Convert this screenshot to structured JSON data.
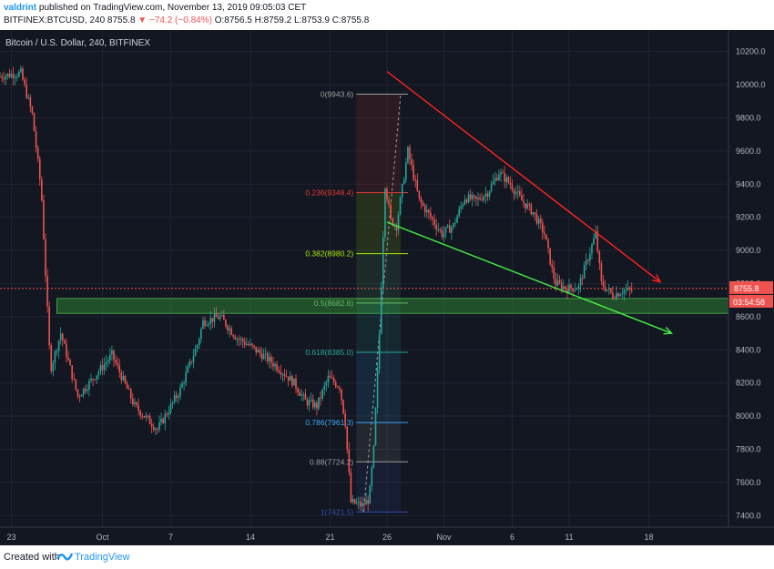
{
  "header": {
    "user": "valdrint",
    "published": "published on TradingView.com, November 13, 2019 09:05:03 CET",
    "symbol": "BITFINEX:BTCUSD, 240",
    "last": "8755.8",
    "change": "▼ −74.2 (−0.84%)",
    "ohlc": "O:8756.5 H:8759.2 L:8753.9 C:8755.8"
  },
  "footer": {
    "created": "Created with",
    "brand": "TradingView"
  },
  "colors": {
    "bg": "#131722",
    "up": "#26a69a",
    "down": "#ef5350",
    "resistance": "#ff2222",
    "support": "#44ee44",
    "zone": "#2e7d32"
  },
  "chart_data": {
    "type": "candlestick",
    "title": "Bitcoin / U.S. Dollar, 240, BITFINEX",
    "ylim": [
      7330,
      10330
    ],
    "y_ticks": [
      7400,
      7600,
      7800,
      8000,
      8200,
      8400,
      8600,
      8800,
      9000,
      9200,
      9400,
      9600,
      9800,
      10000,
      10200
    ],
    "y_tick_labels": [
      "7400.0",
      "7600.0",
      "7800.0",
      "8000.0",
      "8200.0",
      "8400.0",
      "8600.0",
      "8800.0",
      "9000.0",
      "9200.0",
      "9400.0",
      "9600.0",
      "9800.0",
      "10000.0",
      "10200.0"
    ],
    "x_days": [
      0,
      8,
      14,
      21,
      28,
      33,
      38,
      44,
      49,
      56
    ],
    "x_labels": [
      "23",
      "Oct",
      "7",
      "14",
      "21",
      "26",
      "Nov",
      "6",
      "11",
      "18"
    ],
    "xlim": [
      -1,
      63
    ],
    "price_path_key_points": [
      [
        -1,
        10050
      ],
      [
        1,
        10070
      ],
      [
        2,
        9820
      ],
      [
        2.8,
        9350
      ],
      [
        3.6,
        8280
      ],
      [
        4.5,
        8500
      ],
      [
        6,
        8120
      ],
      [
        7,
        8200
      ],
      [
        9,
        8370
      ],
      [
        11,
        8060
      ],
      [
        13,
        7920
      ],
      [
        15,
        8160
      ],
      [
        16.5,
        8430
      ],
      [
        17,
        8570
      ],
      [
        18.5,
        8600
      ],
      [
        20,
        8470
      ],
      [
        21,
        8430
      ],
      [
        22,
        8380
      ],
      [
        23.5,
        8300
      ],
      [
        25,
        8200
      ],
      [
        26,
        8090
      ],
      [
        27,
        8060
      ],
      [
        28,
        8230
      ],
      [
        29,
        8180
      ],
      [
        29.5,
        7960
      ],
      [
        30,
        7480
      ],
      [
        31,
        7460
      ],
      [
        31.6,
        7500
      ],
      [
        32,
        7800
      ],
      [
        32.5,
        8500
      ],
      [
        33,
        9400
      ],
      [
        33.5,
        9180
      ],
      [
        34,
        9150
      ],
      [
        35,
        9600
      ],
      [
        36,
        9300
      ],
      [
        37,
        9200
      ],
      [
        38,
        9100
      ],
      [
        39,
        9150
      ],
      [
        40,
        9320
      ],
      [
        41,
        9300
      ],
      [
        42,
        9350
      ],
      [
        43,
        9470
      ],
      [
        44,
        9400
      ],
      [
        45,
        9300
      ],
      [
        46,
        9230
      ],
      [
        47,
        9100
      ],
      [
        47.7,
        8870
      ],
      [
        48,
        8800
      ],
      [
        49,
        8770
      ],
      [
        50,
        8780
      ],
      [
        51.5,
        9100
      ],
      [
        52,
        8800
      ],
      [
        53,
        8730
      ],
      [
        54,
        8760
      ],
      [
        54.5,
        8756
      ]
    ],
    "last_price": "8755.8",
    "countdown": "03:54:58",
    "fibonacci": [
      {
        "label": "0(9943.6)",
        "value": 9943.6,
        "color": "#9e9e9e"
      },
      {
        "label": "0.236(9348.4)",
        "value": 9348.4,
        "color": "#e53935"
      },
      {
        "label": "0.382(8980.2)",
        "value": 8980.2,
        "color": "#aeea00"
      },
      {
        "label": "0.5(8682.6)",
        "value": 8682.6,
        "color": "#66bb6a"
      },
      {
        "label": "0.618(8385.0)",
        "value": 8385.0,
        "color": "#26a69a"
      },
      {
        "label": "0.786(7961.3)",
        "value": 7961.3,
        "color": "#42a5f5"
      },
      {
        "label": "0.88(7724.2)",
        "value": 7724.2,
        "color": "#9e9e9e"
      },
      {
        "label": "1(7421.5)",
        "value": 7421.5,
        "color": "#3949ab"
      }
    ],
    "fib_x_range": [
      30.3,
      34.2
    ],
    "support_zone": {
      "y": [
        8620,
        8710
      ],
      "x_start": 4.0
    },
    "resistance_line": {
      "from": [
        33,
        10080
      ],
      "to": [
        57,
        8810
      ]
    },
    "support_line": {
      "from": [
        33,
        9170
      ],
      "to": [
        58,
        8500
      ]
    },
    "grid": true
  }
}
